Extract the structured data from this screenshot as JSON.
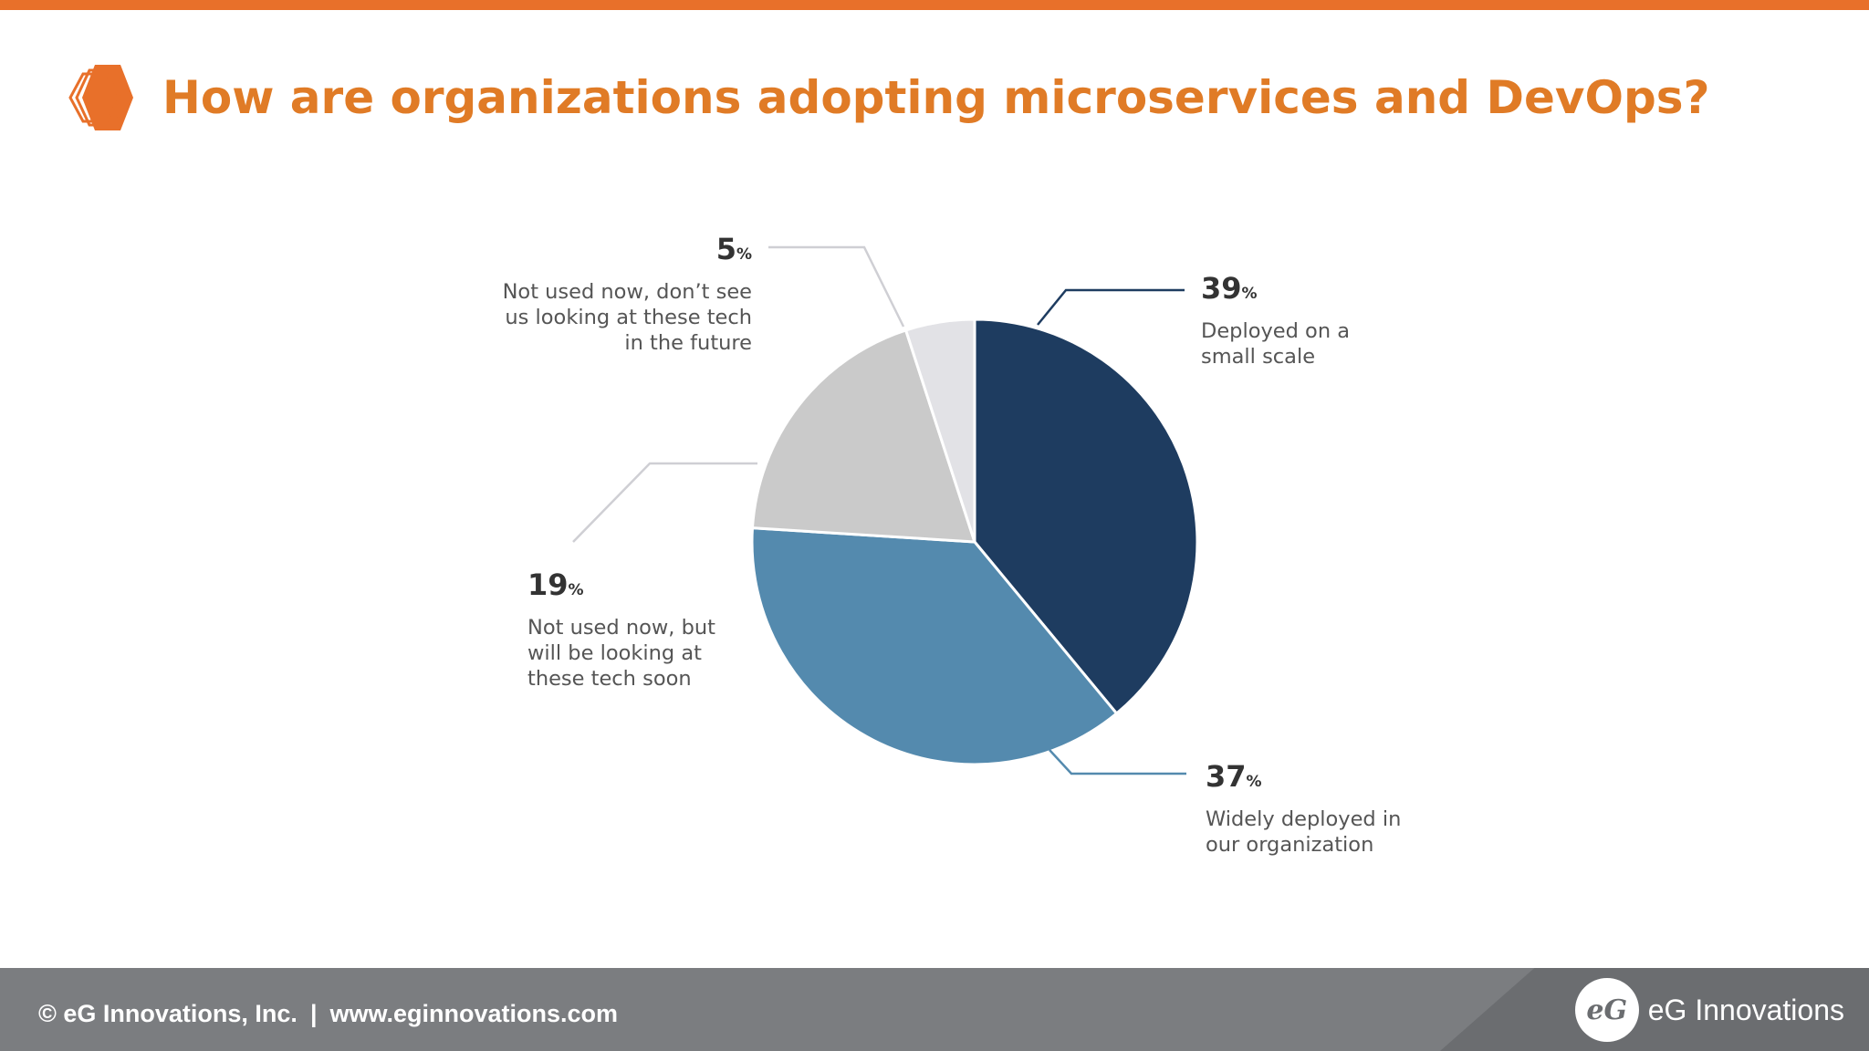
{
  "slide": {
    "title": "How are organizations adopting microservices and DevOps?",
    "accent_color": "#e8702a",
    "icon": "hexagon-logo-icon"
  },
  "chart_data": {
    "type": "pie",
    "title": "",
    "slices": [
      {
        "value": "39",
        "unit": "%",
        "label_lines": [
          "Deployed on a",
          "small scale"
        ],
        "color": "#1e3c60"
      },
      {
        "value": "37",
        "unit": "%",
        "label_lines": [
          "Widely deployed in",
          "our organization"
        ],
        "color": "#548aae"
      },
      {
        "value": "19",
        "unit": "%",
        "label_lines": [
          "Not used now, but",
          "will be looking at",
          "these tech soon"
        ],
        "color": "#cacaca"
      },
      {
        "value": "5",
        "unit": "%",
        "label_lines": [
          "Not used now, don’t see",
          "us looking at these tech",
          "in the future"
        ],
        "color": "#e2e2e6"
      }
    ],
    "legend": "none"
  },
  "footer": {
    "copyright": "© eG Innovations, Inc.",
    "separator": "|",
    "website": "www.eginnovations.com",
    "brand_mark": "eG",
    "brand_name": "eG Innovations"
  }
}
